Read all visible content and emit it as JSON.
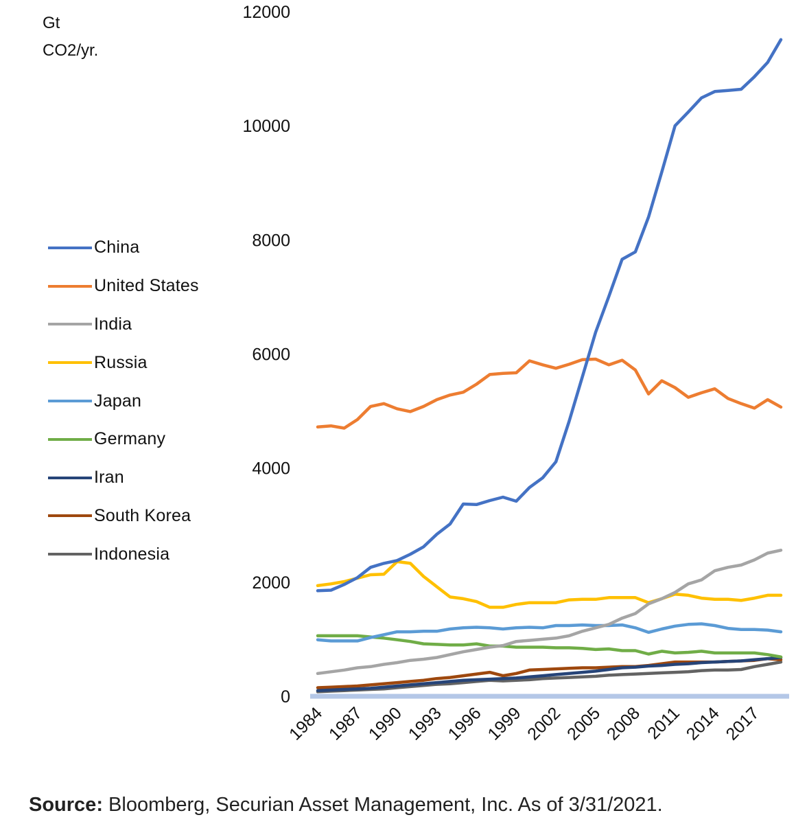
{
  "y_axis_unit": [
    "Gt",
    "CO2/yr."
  ],
  "source_label": "Source:",
  "source_text": "Bloomberg, Securian Asset Management, Inc. As of 3/31/2021.",
  "chart_data": {
    "type": "line",
    "title": "",
    "xlabel": "",
    "ylabel": "Gt CO2/yr.",
    "ylim": [
      0,
      12000
    ],
    "yticks": [
      0,
      2000,
      4000,
      6000,
      8000,
      10000,
      12000
    ],
    "xtick_labels": [
      "1984",
      "1987",
      "1990",
      "1993",
      "1996",
      "1999",
      "2002",
      "2005",
      "2008",
      "2011",
      "2014",
      "2017"
    ],
    "legend_position": "left",
    "grid": false,
    "x": [
      1984,
      1985,
      1986,
      1987,
      1988,
      1989,
      1990,
      1991,
      1992,
      1993,
      1994,
      1995,
      1996,
      1997,
      1998,
      1999,
      2000,
      2001,
      2002,
      2003,
      2004,
      2005,
      2006,
      2007,
      2008,
      2009,
      2010,
      2011,
      2012,
      2013,
      2014,
      2015,
      2016,
      2017,
      2018,
      2019
    ],
    "series": [
      {
        "name": "China",
        "color": "#4472C4",
        "values": [
          1850,
          1860,
          1960,
          2080,
          2260,
          2330,
          2380,
          2490,
          2620,
          2840,
          3020,
          3370,
          3360,
          3430,
          3490,
          3420,
          3660,
          3830,
          4110,
          4820,
          5600,
          6380,
          7010,
          7660,
          7790,
          8400,
          9190,
          10000,
          10240,
          10490,
          10600,
          10620,
          10640,
          10860,
          11110,
          11510
        ]
      },
      {
        "name": "United States",
        "color": "#ED7D31",
        "values": [
          4720,
          4740,
          4700,
          4850,
          5080,
          5130,
          5040,
          4990,
          5080,
          5200,
          5280,
          5330,
          5470,
          5640,
          5660,
          5670,
          5880,
          5810,
          5750,
          5820,
          5900,
          5910,
          5810,
          5890,
          5720,
          5300,
          5530,
          5410,
          5240,
          5320,
          5390,
          5220,
          5130,
          5050,
          5200,
          5070
        ]
      },
      {
        "name": "India",
        "color": "#A5A5A5",
        "values": [
          400,
          430,
          460,
          500,
          520,
          560,
          590,
          630,
          650,
          680,
          730,
          780,
          820,
          860,
          890,
          960,
          980,
          1000,
          1020,
          1060,
          1140,
          1200,
          1260,
          1370,
          1450,
          1620,
          1710,
          1820,
          1970,
          2040,
          2200,
          2260,
          2300,
          2390,
          2510,
          2560
        ]
      },
      {
        "name": "Russia",
        "color": "#FFC000",
        "values": [
          1940,
          1970,
          2010,
          2070,
          2130,
          2140,
          2360,
          2330,
          2100,
          1920,
          1740,
          1710,
          1660,
          1560,
          1560,
          1610,
          1640,
          1640,
          1640,
          1690,
          1700,
          1700,
          1730,
          1730,
          1730,
          1640,
          1710,
          1790,
          1770,
          1720,
          1700,
          1700,
          1680,
          1720,
          1770,
          1770
        ]
      },
      {
        "name": "Japan",
        "color": "#5B9BD5",
        "values": [
          990,
          970,
          970,
          970,
          1030,
          1080,
          1130,
          1130,
          1140,
          1140,
          1180,
          1200,
          1210,
          1200,
          1180,
          1200,
          1210,
          1200,
          1240,
          1240,
          1250,
          1240,
          1240,
          1250,
          1200,
          1120,
          1180,
          1230,
          1260,
          1270,
          1240,
          1190,
          1170,
          1170,
          1160,
          1130
        ]
      },
      {
        "name": "Germany",
        "color": "#70AD47",
        "values": [
          1060,
          1060,
          1060,
          1060,
          1040,
          1020,
          990,
          960,
          920,
          910,
          900,
          900,
          920,
          880,
          880,
          860,
          860,
          860,
          850,
          850,
          840,
          820,
          830,
          800,
          800,
          740,
          790,
          760,
          770,
          790,
          760,
          760,
          760,
          760,
          730,
          690
        ]
      },
      {
        "name": "Iran",
        "color": "#264478",
        "values": [
          100,
          110,
          120,
          130,
          140,
          160,
          180,
          200,
          220,
          240,
          260,
          280,
          290,
          300,
          310,
          320,
          340,
          360,
          380,
          400,
          420,
          440,
          470,
          500,
          510,
          530,
          540,
          560,
          570,
          590,
          600,
          610,
          620,
          640,
          660,
          680
        ]
      },
      {
        "name": "South Korea",
        "color": "#9E480E",
        "values": [
          150,
          160,
          170,
          180,
          200,
          220,
          240,
          260,
          280,
          310,
          330,
          360,
          390,
          420,
          360,
          400,
          460,
          470,
          480,
          490,
          500,
          500,
          510,
          520,
          520,
          540,
          570,
          600,
          600,
          600,
          600,
          610,
          620,
          630,
          660,
          640
        ]
      },
      {
        "name": "Indonesia",
        "color": "#636363",
        "values": [
          80,
          90,
          100,
          110,
          120,
          130,
          150,
          170,
          190,
          210,
          220,
          240,
          260,
          280,
          270,
          280,
          290,
          310,
          320,
          330,
          340,
          350,
          370,
          380,
          390,
          400,
          410,
          420,
          430,
          450,
          460,
          460,
          470,
          520,
          560,
          600
        ]
      }
    ]
  }
}
